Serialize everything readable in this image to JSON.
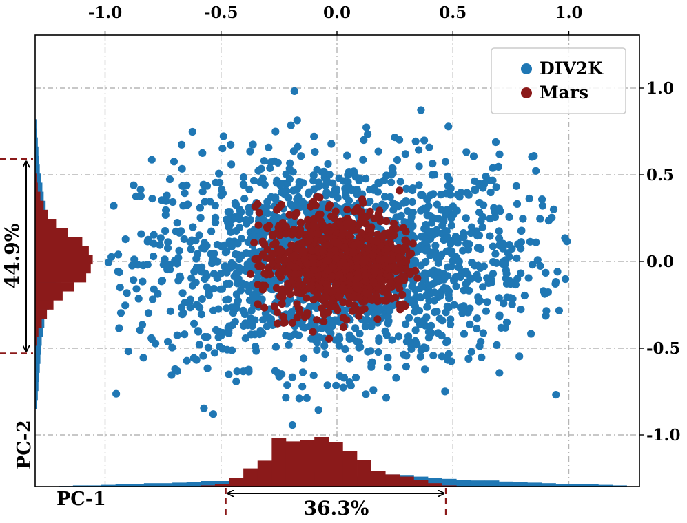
{
  "chart_data": {
    "type": "scatter",
    "title": "",
    "xlabel": "PC-1",
    "ylabel": "PC-2",
    "xlim": [
      -1.2,
      1.25
    ],
    "ylim": [
      -1.3,
      1.3
    ],
    "x_ticks": [
      "-1.0",
      "-0.5",
      "0.0",
      "0.5",
      "1.0"
    ],
    "x_tick_values": [
      -1.0,
      -0.5,
      0.0,
      0.5,
      1.0
    ],
    "y_ticks": [
      "1.0",
      "0.5",
      "0.0",
      "-0.5",
      "-1.0"
    ],
    "y_tick_values": [
      1.0,
      0.5,
      0.0,
      -0.5,
      -1.0
    ],
    "grid": true,
    "legend": {
      "position": "top-right",
      "entries": [
        "DIV2K",
        "Mars"
      ]
    },
    "series": [
      {
        "name": "DIV2K",
        "color": "#1f77b4",
        "approx_points": 1800,
        "center": [
          0.0,
          0.0
        ],
        "spread_x": 0.42,
        "spread_y": 0.3,
        "x_range": [
          -1.0,
          1.0
        ],
        "y_range": [
          -1.0,
          1.0
        ]
      },
      {
        "name": "Mars",
        "color": "#8b1a1a",
        "approx_points": 900,
        "center": [
          0.0,
          0.0
        ],
        "spread_x": 0.17,
        "spread_y": 0.15,
        "x_range": [
          -0.38,
          0.35
        ],
        "y_range": [
          -0.45,
          0.47
        ]
      }
    ],
    "x_histogram": {
      "DIV2K": [
        0.01,
        0.02,
        0.02,
        0.03,
        0.04,
        0.05,
        0.06,
        0.06,
        0.07,
        0.08,
        0.1,
        0.1,
        0.12,
        0.16,
        0.18,
        0.22,
        0.25,
        0.27,
        0.25,
        0.22,
        0.19,
        0.18,
        0.22,
        0.22,
        0.21,
        0.18,
        0.16,
        0.14,
        0.12,
        0.11,
        0.11,
        0.09,
        0.08,
        0.07,
        0.06,
        0.05,
        0.05,
        0.04,
        0.03,
        0.02
      ],
      "Mars": [
        0,
        0,
        0,
        0,
        0,
        0,
        0,
        0,
        0,
        0,
        0.02,
        0.05,
        0.15,
        0.33,
        0.47,
        0.88,
        0.82,
        0.85,
        0.9,
        0.8,
        0.65,
        0.48,
        0.28,
        0.22,
        0.18,
        0.12,
        0.06,
        0.02,
        0,
        0,
        0,
        0,
        0,
        0,
        0,
        0,
        0,
        0,
        0,
        0
      ]
    },
    "y_histogram": {
      "DIV2K": [
        0.02,
        0.03,
        0.04,
        0.05,
        0.06,
        0.07,
        0.09,
        0.11,
        0.13,
        0.16,
        0.2,
        0.25,
        0.33,
        0.4,
        0.44,
        0.47,
        0.45,
        0.4,
        0.32,
        0.26,
        0.21,
        0.17,
        0.14,
        0.12,
        0.1,
        0.09,
        0.08,
        0.07,
        0.06,
        0.05,
        0.04,
        0.03
      ],
      "Mars": [
        0,
        0,
        0,
        0,
        0,
        0,
        0.02,
        0.04,
        0.08,
        0.13,
        0.2,
        0.32,
        0.5,
        0.72,
        0.82,
        0.88,
        0.85,
        0.78,
        0.6,
        0.42,
        0.28,
        0.18,
        0.1,
        0.05,
        0.02,
        0,
        0,
        0,
        0,
        0,
        0,
        0
      ]
    },
    "annotations": [
      {
        "text": "36.3%",
        "axis": "x",
        "from": -0.48,
        "to": 0.47,
        "color": "#8b1a1a"
      },
      {
        "text": "44.9%",
        "axis": "y",
        "from": 0.59,
        "to": -0.53,
        "color": "#8b1a1a"
      }
    ]
  }
}
